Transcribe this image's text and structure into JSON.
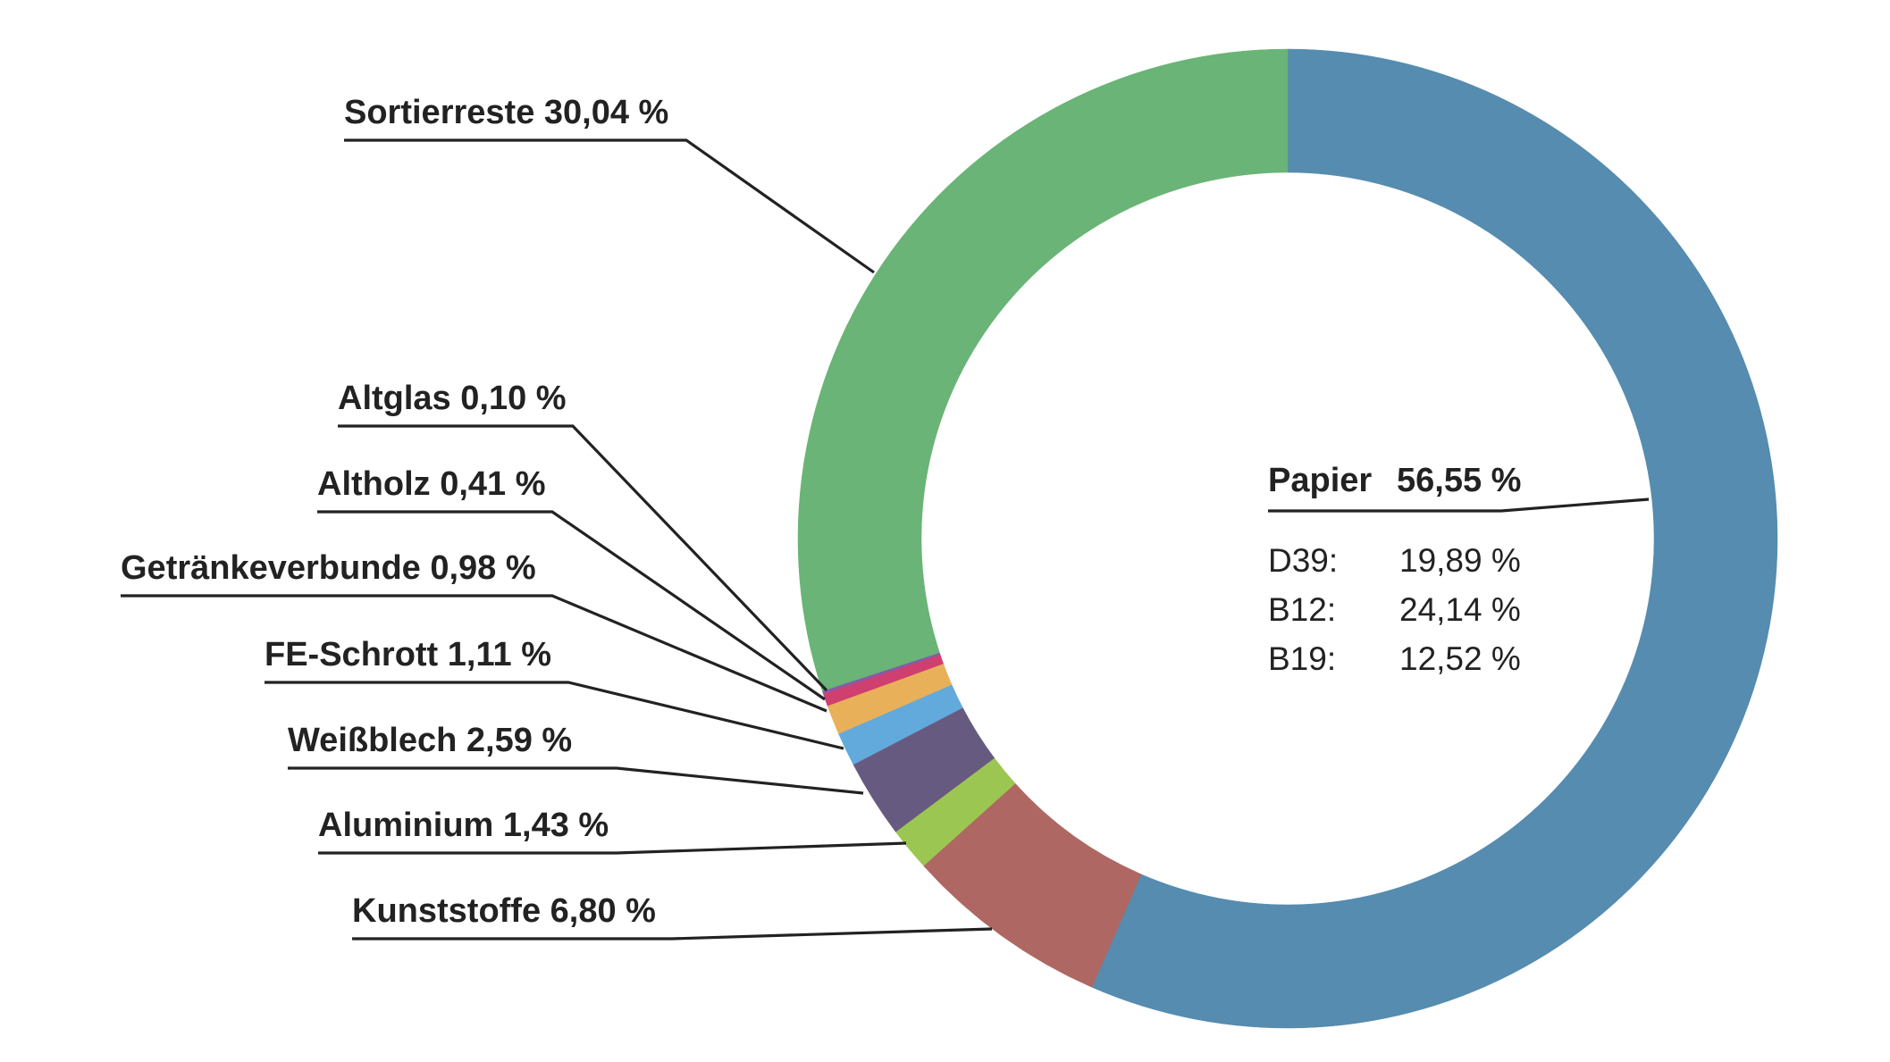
{
  "chart_data": {
    "type": "pie",
    "variant": "donut",
    "slices": [
      {
        "name": "Papier",
        "label": "Papier",
        "value": 56.55,
        "value_text": "56,55 %",
        "color": "#558CAF"
      },
      {
        "name": "Kunststoffe",
        "label": "Kunststoffe 6,80 %",
        "value": 6.8,
        "color": "#AE6763"
      },
      {
        "name": "Aluminium",
        "label": "Aluminium 1,43 %",
        "value": 1.43,
        "color": "#9CC652"
      },
      {
        "name": "Weißblech",
        "label": "Weißblech 2,59 %",
        "value": 2.59,
        "color": "#675A80"
      },
      {
        "name": "FE-Schrott",
        "label": "FE-Schrott 1,11 %",
        "value": 1.11,
        "color": "#62A9DC"
      },
      {
        "name": "Getränkeverbunde",
        "label": "Getränkeverbunde 0,98 %",
        "value": 0.98,
        "color": "#E9B05A"
      },
      {
        "name": "Altholz",
        "label": "Altholz 0,41 %",
        "value": 0.41,
        "color": "#CF3F6F"
      },
      {
        "name": "Altglas",
        "label": "Altglas 0,10 %",
        "value": 0.1,
        "color": "#8A5AA6"
      },
      {
        "name": "Sortierreste",
        "label": "Sortierreste 30,04 %",
        "value": 30.04,
        "color": "#69B476"
      }
    ],
    "papier_breakdown": [
      {
        "grade": "D39:",
        "value": 19.89,
        "value_text": "19,89 %"
      },
      {
        "grade": "B12:",
        "value": 24.14,
        "value_text": "24,14 %"
      },
      {
        "grade": "B19:",
        "value": 12.52,
        "value_text": "12,52 %"
      }
    ],
    "start_angle": "top",
    "direction": "clockwise"
  }
}
